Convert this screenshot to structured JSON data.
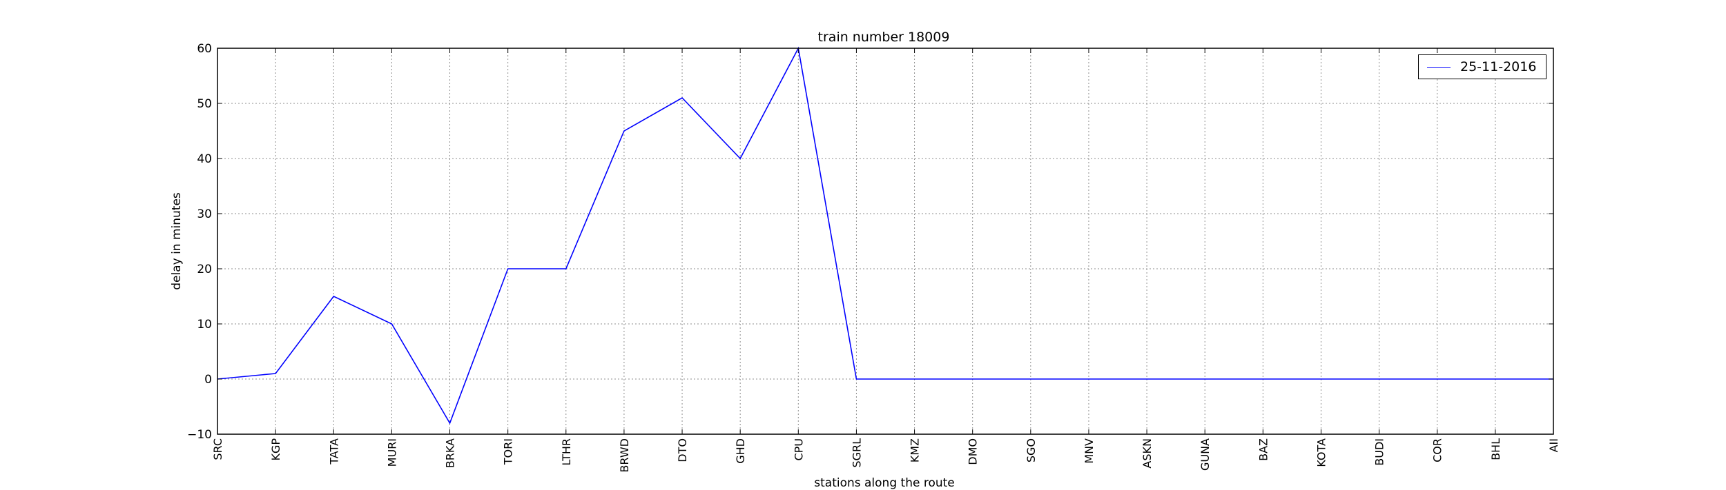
{
  "chart_data": {
    "type": "line",
    "title": "train number 18009",
    "xlabel": "stations along the route",
    "ylabel": "delay in minutes",
    "ylim": [
      -10,
      60
    ],
    "yticks": [
      -10,
      0,
      10,
      20,
      30,
      40,
      50,
      60
    ],
    "grid": true,
    "legend_position": "top-right",
    "categories": [
      "SRC",
      "KGP",
      "TATA",
      "MURI",
      "BRKA",
      "TORI",
      "LTHR",
      "BRWD",
      "DTO",
      "GHD",
      "CPU",
      "SGRL",
      "KMZ",
      "DMO",
      "SGO",
      "MNV",
      "ASKN",
      "GUNA",
      "BAZ",
      "KOTA",
      "BUDI",
      "COR",
      "BHL",
      "AII"
    ],
    "series": [
      {
        "name": "25-11-2016",
        "color": "#0000ff",
        "values": [
          0,
          1,
          15,
          10,
          -8,
          20,
          20,
          45,
          51,
          40,
          60,
          0,
          0,
          0,
          0,
          0,
          0,
          0,
          0,
          0,
          0,
          0,
          0,
          0
        ]
      }
    ]
  }
}
